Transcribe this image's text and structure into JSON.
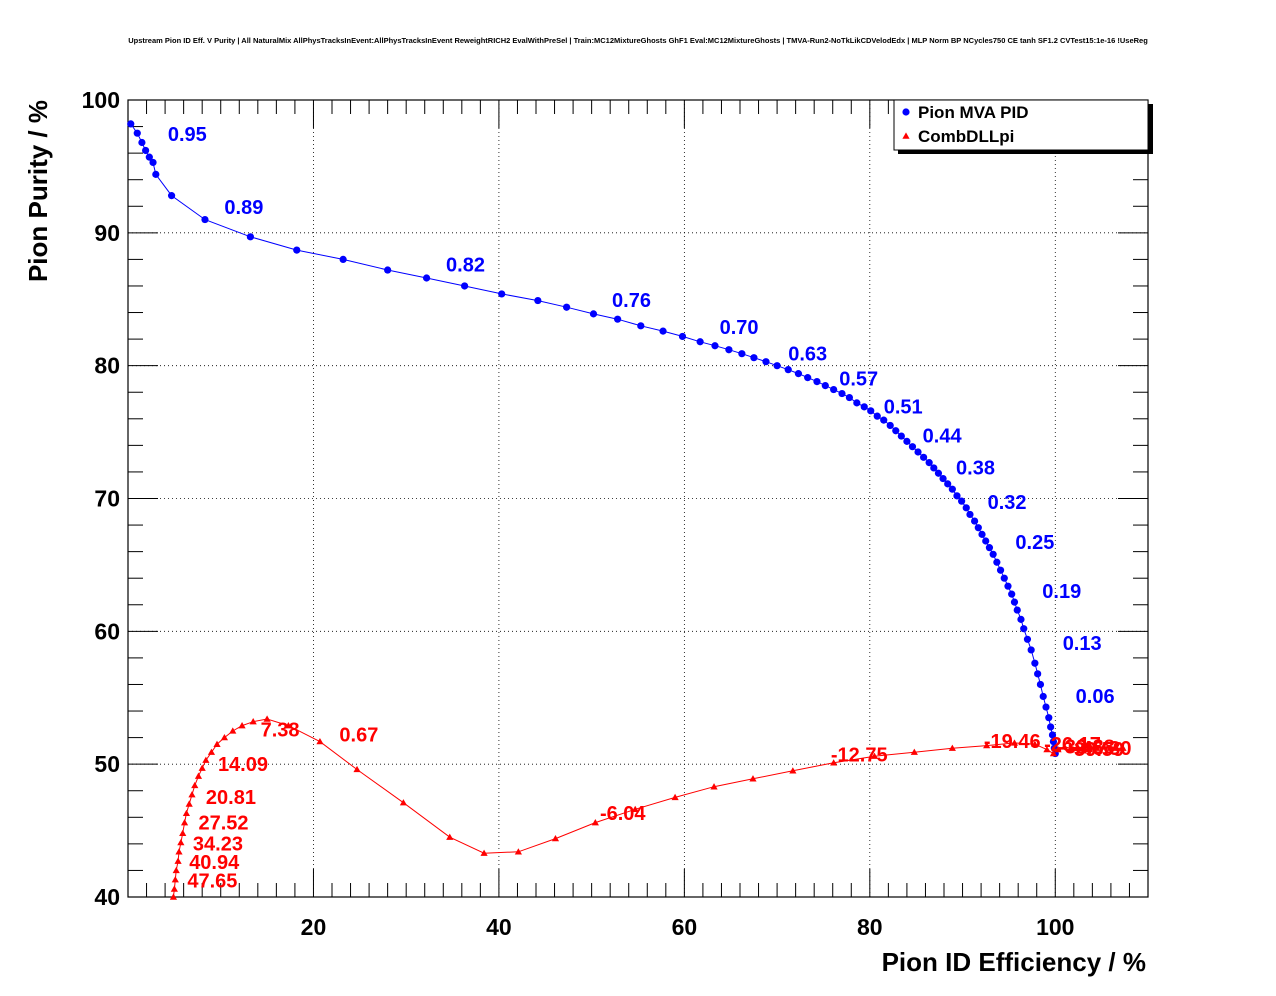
{
  "chart_data": {
    "type": "scatter",
    "title": "Upstream Pion ID Eff. V Purity | All NaturalMix AllPhysTracksInEvent:AllPhysTracksInEvent ReweightRICH2 EvalWithPreSel | Train:MC12MixtureGhosts GhF1 Eval:MC12MixtureGhosts | TMVA-Run2-NoTkLikCDVelodEdx | MLP Norm BP NCycles750 CE tanh SF1.2 CVTest15:1e-16 !UseReg",
    "xlabel": "Pion ID Efficiency / %",
    "ylabel": "Pion Purity / %",
    "xlim": [
      0,
      110
    ],
    "ylim": [
      40,
      100
    ],
    "x_ticks": [
      20,
      40,
      60,
      80,
      100
    ],
    "y_ticks": [
      40,
      50,
      60,
      70,
      80,
      90,
      100
    ],
    "x_tick_labels": [
      "20",
      "40",
      "60",
      "80",
      "100"
    ],
    "y_tick_labels": [
      "40",
      "50",
      "60",
      "70",
      "80",
      "90",
      "100"
    ],
    "grid": true,
    "legend_position": "top-right",
    "legend": [
      {
        "label": "Pion MVA PID",
        "color": "#0000ff",
        "marker": "circle"
      },
      {
        "label": "CombDLLpi",
        "color": "#ff0000",
        "marker": "triangle"
      }
    ],
    "series": [
      {
        "name": "Pion MVA PID",
        "color": "#0000ff",
        "marker": "circle",
        "points": [
          [
            0.3,
            98.2
          ],
          [
            1.0,
            97.5
          ],
          [
            1.5,
            96.8
          ],
          [
            1.9,
            96.2
          ],
          [
            2.3,
            95.7
          ],
          [
            2.7,
            95.3
          ],
          [
            3.0,
            94.4
          ],
          [
            4.7,
            92.8
          ],
          [
            8.3,
            91.0
          ],
          [
            13.2,
            89.7
          ],
          [
            18.2,
            88.7
          ],
          [
            23.2,
            88.0
          ],
          [
            28.0,
            87.2
          ],
          [
            32.2,
            86.6
          ],
          [
            36.3,
            86.0
          ],
          [
            40.3,
            85.4
          ],
          [
            44.2,
            84.9
          ],
          [
            47.3,
            84.4
          ],
          [
            50.2,
            83.9
          ],
          [
            52.8,
            83.5
          ],
          [
            55.3,
            83.0
          ],
          [
            57.7,
            82.6
          ],
          [
            59.8,
            82.2
          ],
          [
            61.7,
            81.8
          ],
          [
            63.3,
            81.5
          ],
          [
            64.8,
            81.2
          ],
          [
            66.2,
            80.9
          ],
          [
            67.5,
            80.6
          ],
          [
            68.8,
            80.3
          ],
          [
            70.0,
            80.0
          ],
          [
            71.2,
            79.7
          ],
          [
            72.3,
            79.4
          ],
          [
            73.3,
            79.1
          ],
          [
            74.3,
            78.8
          ],
          [
            75.2,
            78.5
          ],
          [
            76.1,
            78.2
          ],
          [
            77.0,
            77.9
          ],
          [
            77.8,
            77.6
          ],
          [
            78.6,
            77.2
          ],
          [
            79.4,
            76.9
          ],
          [
            80.1,
            76.6
          ],
          [
            80.8,
            76.2
          ],
          [
            81.5,
            75.9
          ],
          [
            82.2,
            75.5
          ],
          [
            82.8,
            75.1
          ],
          [
            83.4,
            74.7
          ],
          [
            84.0,
            74.3
          ],
          [
            84.6,
            73.9
          ],
          [
            85.2,
            73.5
          ],
          [
            85.8,
            73.1
          ],
          [
            86.4,
            72.7
          ],
          [
            86.9,
            72.3
          ],
          [
            87.4,
            71.9
          ],
          [
            87.9,
            71.5
          ],
          [
            88.4,
            71.1
          ],
          [
            88.9,
            70.7
          ],
          [
            89.4,
            70.2
          ],
          [
            89.9,
            69.8
          ],
          [
            90.4,
            69.3
          ],
          [
            90.8,
            68.8
          ],
          [
            91.3,
            68.3
          ],
          [
            91.7,
            67.8
          ],
          [
            92.1,
            67.3
          ],
          [
            92.5,
            66.8
          ],
          [
            92.9,
            66.3
          ],
          [
            93.3,
            65.8
          ],
          [
            93.7,
            65.2
          ],
          [
            94.1,
            64.6
          ],
          [
            94.5,
            64.0
          ],
          [
            94.9,
            63.4
          ],
          [
            95.3,
            62.8
          ],
          [
            95.6,
            62.2
          ],
          [
            95.9,
            61.6
          ],
          [
            96.3,
            60.9
          ],
          [
            96.6,
            60.2
          ],
          [
            97.0,
            59.4
          ],
          [
            97.4,
            58.6
          ],
          [
            97.8,
            57.6
          ],
          [
            98.1,
            56.8
          ],
          [
            98.4,
            56.0
          ],
          [
            98.7,
            55.1
          ],
          [
            99.0,
            54.3
          ],
          [
            99.3,
            53.5
          ],
          [
            99.5,
            52.8
          ],
          [
            99.7,
            52.2
          ],
          [
            99.8,
            51.7
          ],
          [
            99.9,
            51.2
          ],
          [
            100.0,
            50.8
          ]
        ],
        "labels": [
          {
            "text": "0.95",
            "x": 4.3,
            "y": 96.9
          },
          {
            "text": "0.89",
            "x": 10.4,
            "y": 91.4
          },
          {
            "text": "0.82",
            "x": 34.3,
            "y": 87.1
          },
          {
            "text": "0.76",
            "x": 52.2,
            "y": 84.4
          },
          {
            "text": "0.70",
            "x": 63.8,
            "y": 82.4
          },
          {
            "text": "0.63",
            "x": 71.2,
            "y": 80.4
          },
          {
            "text": "0.57",
            "x": 76.7,
            "y": 78.5
          },
          {
            "text": "0.51",
            "x": 81.5,
            "y": 76.4
          },
          {
            "text": "0.44",
            "x": 85.7,
            "y": 74.2
          },
          {
            "text": "0.38",
            "x": 89.3,
            "y": 71.8
          },
          {
            "text": "0.32",
            "x": 92.7,
            "y": 69.2
          },
          {
            "text": "0.25",
            "x": 95.7,
            "y": 66.2
          },
          {
            "text": "0.19",
            "x": 98.6,
            "y": 62.5
          },
          {
            "text": "0.13",
            "x": 100.8,
            "y": 58.6
          },
          {
            "text": "0.06",
            "x": 102.2,
            "y": 54.6
          }
        ]
      },
      {
        "name": "CombDLLpi",
        "color": "#ff0000",
        "marker": "triangle",
        "points": [
          [
            4.9,
            40.0
          ],
          [
            5.0,
            40.6
          ],
          [
            5.1,
            41.3
          ],
          [
            5.2,
            42.0
          ],
          [
            5.4,
            42.7
          ],
          [
            5.5,
            43.4
          ],
          [
            5.7,
            44.1
          ],
          [
            5.9,
            44.8
          ],
          [
            6.1,
            45.6
          ],
          [
            6.3,
            46.3
          ],
          [
            6.6,
            47.0
          ],
          [
            6.9,
            47.7
          ],
          [
            7.2,
            48.4
          ],
          [
            7.6,
            49.1
          ],
          [
            8.0,
            49.7
          ],
          [
            8.4,
            50.3
          ],
          [
            9.0,
            50.9
          ],
          [
            9.6,
            51.5
          ],
          [
            10.4,
            52.0
          ],
          [
            11.3,
            52.5
          ],
          [
            12.3,
            52.9
          ],
          [
            13.5,
            53.2
          ],
          [
            15.0,
            53.4
          ],
          [
            17.3,
            52.9
          ],
          [
            20.7,
            51.7
          ],
          [
            24.7,
            49.6
          ],
          [
            29.7,
            47.1
          ],
          [
            34.7,
            44.5
          ],
          [
            38.4,
            43.3
          ],
          [
            42.1,
            43.4
          ],
          [
            46.1,
            44.4
          ],
          [
            50.4,
            45.6
          ],
          [
            54.7,
            46.6
          ],
          [
            59.0,
            47.5
          ],
          [
            63.2,
            48.3
          ],
          [
            67.4,
            48.9
          ],
          [
            71.7,
            49.5
          ],
          [
            76.1,
            50.1
          ],
          [
            80.5,
            50.6
          ],
          [
            84.8,
            50.9
          ],
          [
            88.9,
            51.2
          ],
          [
            92.6,
            51.4
          ],
          [
            95.6,
            51.6
          ],
          [
            97.8,
            51.5
          ],
          [
            99.1,
            51.1
          ],
          [
            99.8,
            50.8
          ],
          [
            100.3,
            51.1
          ],
          [
            101.0,
            51.3
          ],
          [
            101.7,
            51.2
          ],
          [
            102.4,
            51.3
          ],
          [
            103.1,
            51.2
          ],
          [
            103.8,
            51.3
          ],
          [
            104.5,
            51.2
          ],
          [
            105.2,
            51.3
          ],
          [
            105.9,
            51.2
          ],
          [
            106.6,
            51.2
          ],
          [
            107.3,
            51.2
          ]
        ],
        "labels": [
          {
            "text": "7.38",
            "x": 14.3,
            "y": 52.1
          },
          {
            "text": "0.67",
            "x": 22.8,
            "y": 51.7
          },
          {
            "text": "14.09",
            "x": 9.7,
            "y": 49.5
          },
          {
            "text": "20.81",
            "x": 8.4,
            "y": 47.0
          },
          {
            "text": "27.52",
            "x": 7.6,
            "y": 45.1
          },
          {
            "text": "34.23",
            "x": 7.0,
            "y": 43.5
          },
          {
            "text": "40.94",
            "x": 6.6,
            "y": 42.1
          },
          {
            "text": "47.65",
            "x": 6.4,
            "y": 40.7
          },
          {
            "text": "-6.04",
            "x": 50.9,
            "y": 45.8
          },
          {
            "text": "-12.75",
            "x": 75.8,
            "y": 50.2
          },
          {
            "text": "-19.46",
            "x": 92.3,
            "y": 51.2
          },
          {
            "text": "-26.17",
            "x": 98.8,
            "y": 51.0
          },
          {
            "text": "-32.88",
            "x": 100.3,
            "y": 50.8
          },
          {
            "text": "-39.59",
            "x": 101.3,
            "y": 50.6
          },
          {
            "text": "-46.30",
            "x": 102.1,
            "y": 50.7
          }
        ]
      }
    ]
  }
}
